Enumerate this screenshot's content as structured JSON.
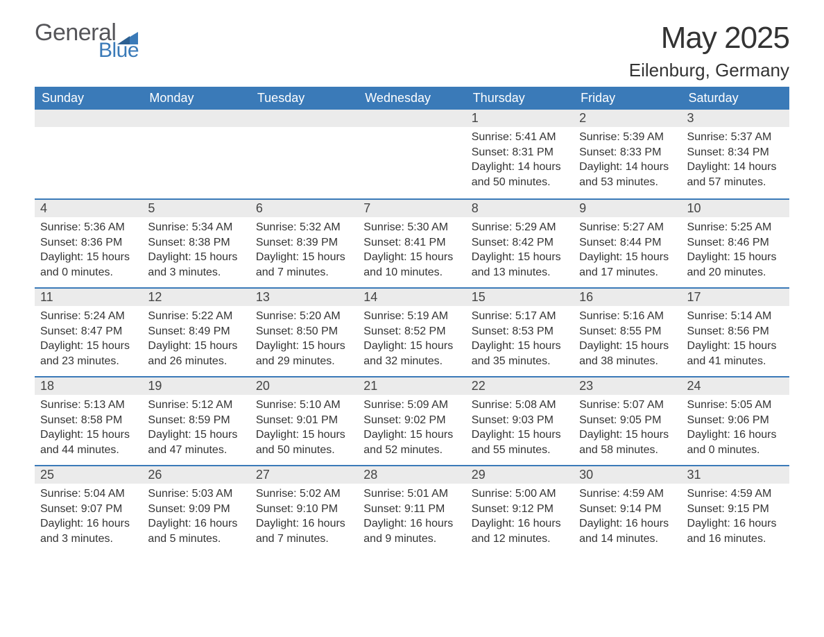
{
  "brand": {
    "general": "General",
    "blue": "Blue"
  },
  "title": "May 2025",
  "location": "Eilenburg, Germany",
  "colors": {
    "header_bg": "#3a7ab8",
    "header_text": "#ffffff",
    "daybar_bg": "#ebebeb",
    "daybar_border": "#3a7ab8",
    "body_text": "#333333",
    "logo_gray": "#555559",
    "logo_blue": "#3a7ab8",
    "page_bg": "#ffffff"
  },
  "typography": {
    "title_fontsize": 44,
    "location_fontsize": 26,
    "header_fontsize": 18,
    "daynum_fontsize": 18,
    "body_fontsize": 16
  },
  "layout": {
    "columns": 7,
    "rows": 5,
    "leading_blanks": 4
  },
  "weekdays": [
    "Sunday",
    "Monday",
    "Tuesday",
    "Wednesday",
    "Thursday",
    "Friday",
    "Saturday"
  ],
  "days": [
    {
      "n": "1",
      "sunrise": "5:41 AM",
      "sunset": "8:31 PM",
      "daylight": "14 hours and 50 minutes."
    },
    {
      "n": "2",
      "sunrise": "5:39 AM",
      "sunset": "8:33 PM",
      "daylight": "14 hours and 53 minutes."
    },
    {
      "n": "3",
      "sunrise": "5:37 AM",
      "sunset": "8:34 PM",
      "daylight": "14 hours and 57 minutes."
    },
    {
      "n": "4",
      "sunrise": "5:36 AM",
      "sunset": "8:36 PM",
      "daylight": "15 hours and 0 minutes."
    },
    {
      "n": "5",
      "sunrise": "5:34 AM",
      "sunset": "8:38 PM",
      "daylight": "15 hours and 3 minutes."
    },
    {
      "n": "6",
      "sunrise": "5:32 AM",
      "sunset": "8:39 PM",
      "daylight": "15 hours and 7 minutes."
    },
    {
      "n": "7",
      "sunrise": "5:30 AM",
      "sunset": "8:41 PM",
      "daylight": "15 hours and 10 minutes."
    },
    {
      "n": "8",
      "sunrise": "5:29 AM",
      "sunset": "8:42 PM",
      "daylight": "15 hours and 13 minutes."
    },
    {
      "n": "9",
      "sunrise": "5:27 AM",
      "sunset": "8:44 PM",
      "daylight": "15 hours and 17 minutes."
    },
    {
      "n": "10",
      "sunrise": "5:25 AM",
      "sunset": "8:46 PM",
      "daylight": "15 hours and 20 minutes."
    },
    {
      "n": "11",
      "sunrise": "5:24 AM",
      "sunset": "8:47 PM",
      "daylight": "15 hours and 23 minutes."
    },
    {
      "n": "12",
      "sunrise": "5:22 AM",
      "sunset": "8:49 PM",
      "daylight": "15 hours and 26 minutes."
    },
    {
      "n": "13",
      "sunrise": "5:20 AM",
      "sunset": "8:50 PM",
      "daylight": "15 hours and 29 minutes."
    },
    {
      "n": "14",
      "sunrise": "5:19 AM",
      "sunset": "8:52 PM",
      "daylight": "15 hours and 32 minutes."
    },
    {
      "n": "15",
      "sunrise": "5:17 AM",
      "sunset": "8:53 PM",
      "daylight": "15 hours and 35 minutes."
    },
    {
      "n": "16",
      "sunrise": "5:16 AM",
      "sunset": "8:55 PM",
      "daylight": "15 hours and 38 minutes."
    },
    {
      "n": "17",
      "sunrise": "5:14 AM",
      "sunset": "8:56 PM",
      "daylight": "15 hours and 41 minutes."
    },
    {
      "n": "18",
      "sunrise": "5:13 AM",
      "sunset": "8:58 PM",
      "daylight": "15 hours and 44 minutes."
    },
    {
      "n": "19",
      "sunrise": "5:12 AM",
      "sunset": "8:59 PM",
      "daylight": "15 hours and 47 minutes."
    },
    {
      "n": "20",
      "sunrise": "5:10 AM",
      "sunset": "9:01 PM",
      "daylight": "15 hours and 50 minutes."
    },
    {
      "n": "21",
      "sunrise": "5:09 AM",
      "sunset": "9:02 PM",
      "daylight": "15 hours and 52 minutes."
    },
    {
      "n": "22",
      "sunrise": "5:08 AM",
      "sunset": "9:03 PM",
      "daylight": "15 hours and 55 minutes."
    },
    {
      "n": "23",
      "sunrise": "5:07 AM",
      "sunset": "9:05 PM",
      "daylight": "15 hours and 58 minutes."
    },
    {
      "n": "24",
      "sunrise": "5:05 AM",
      "sunset": "9:06 PM",
      "daylight": "16 hours and 0 minutes."
    },
    {
      "n": "25",
      "sunrise": "5:04 AM",
      "sunset": "9:07 PM",
      "daylight": "16 hours and 3 minutes."
    },
    {
      "n": "26",
      "sunrise": "5:03 AM",
      "sunset": "9:09 PM",
      "daylight": "16 hours and 5 minutes."
    },
    {
      "n": "27",
      "sunrise": "5:02 AM",
      "sunset": "9:10 PM",
      "daylight": "16 hours and 7 minutes."
    },
    {
      "n": "28",
      "sunrise": "5:01 AM",
      "sunset": "9:11 PM",
      "daylight": "16 hours and 9 minutes."
    },
    {
      "n": "29",
      "sunrise": "5:00 AM",
      "sunset": "9:12 PM",
      "daylight": "16 hours and 12 minutes."
    },
    {
      "n": "30",
      "sunrise": "4:59 AM",
      "sunset": "9:14 PM",
      "daylight": "16 hours and 14 minutes."
    },
    {
      "n": "31",
      "sunrise": "4:59 AM",
      "sunset": "9:15 PM",
      "daylight": "16 hours and 16 minutes."
    }
  ],
  "labels": {
    "sunrise": "Sunrise:",
    "sunset": "Sunset:",
    "daylight": "Daylight:"
  }
}
